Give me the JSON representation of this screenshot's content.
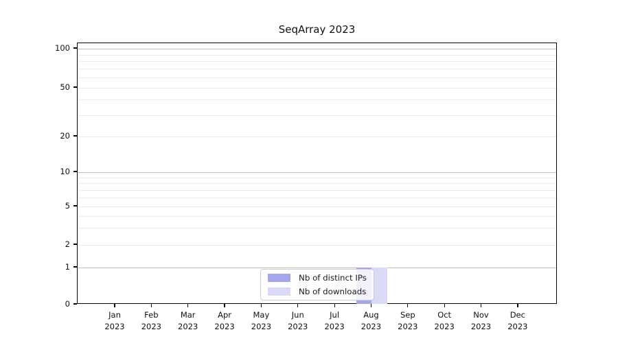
{
  "title": "SeqArray 2023",
  "legend": {
    "items": [
      {
        "label": "Nb of distinct IPs",
        "color": "#a6a6ec"
      },
      {
        "label": "Nb of downloads",
        "color": "#dadaf8"
      }
    ]
  },
  "chart_data": {
    "type": "bar",
    "title": "SeqArray 2023",
    "categories": [
      "Jan 2023",
      "Feb 2023",
      "Mar 2023",
      "Apr 2023",
      "May 2023",
      "Jun 2023",
      "Jul 2023",
      "Aug 2023",
      "Sep 2023",
      "Oct 2023",
      "Nov 2023",
      "Dec 2023"
    ],
    "series": [
      {
        "name": "Nb of distinct IPs",
        "color": "#a6a6ec",
        "values": [
          0,
          0,
          0,
          0,
          0,
          0,
          0,
          1,
          0,
          0,
          0,
          0
        ]
      },
      {
        "name": "Nb of downloads",
        "color": "#dadaf8",
        "values": [
          0,
          0,
          0,
          0,
          0,
          0,
          0,
          1,
          0,
          0,
          0,
          0
        ]
      }
    ],
    "xlabel": "",
    "ylabel": "",
    "y_axis": {
      "scale": "log-like",
      "tick_labels": [
        100,
        50,
        20,
        10,
        5,
        2,
        1,
        0
      ],
      "minor_gridlines": [
        3,
        4,
        6,
        7,
        8,
        9,
        30,
        40,
        60,
        70,
        80,
        90
      ],
      "range": [
        0,
        100
      ]
    },
    "grid": "horizontal major and minor, light gray",
    "legend_position": "inside bottom-center"
  }
}
